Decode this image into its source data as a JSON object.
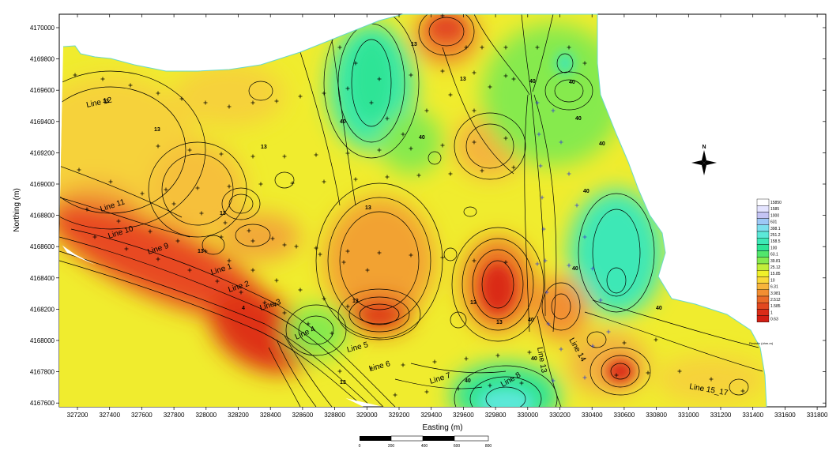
{
  "axes": {
    "xlabel": "Easting (m)",
    "ylabel": "Northing (m)",
    "xticks": [
      "327200",
      "327400",
      "327600",
      "327800",
      "328000",
      "328200",
      "328400",
      "328600",
      "328800",
      "329000",
      "329200",
      "329400",
      "329600",
      "329800",
      "330000",
      "330200",
      "330400",
      "330600",
      "330800",
      "331000",
      "331200",
      "331400",
      "331600",
      "331800"
    ],
    "yticks": [
      "4170000",
      "4169800",
      "4169600",
      "4169400",
      "4169200",
      "4169000",
      "4168800",
      "4168600",
      "4168400",
      "4168200",
      "4168000",
      "4167800",
      "4167600"
    ]
  },
  "legend": {
    "values": [
      "15850",
      "1585",
      "1000",
      "631",
      "398.1",
      "251.2",
      "158.5",
      "100",
      "63.1",
      "39.81",
      "25.12",
      "15.85",
      "10",
      "6.31",
      "3.981",
      "2.512",
      "1.585",
      "1",
      "0.63"
    ],
    "colors": [
      "#ffffff",
      "#e4e4ff",
      "#c4c4f4",
      "#9ec8f6",
      "#7ee0ee",
      "#5ce8d8",
      "#3ee8b6",
      "#2ee496",
      "#52e66c",
      "#86ea4e",
      "#c2ee3a",
      "#f0f02a",
      "#fad83a",
      "#f8b43c",
      "#f28e32",
      "#ea6a28",
      "#e24820",
      "#da2c18",
      "#d21e14"
    ],
    "caption": "Resistiv  (ohm-m)"
  },
  "lines": [
    {
      "label": "Line 12"
    },
    {
      "label": "Line 11"
    },
    {
      "label": "Line 10"
    },
    {
      "label": "Line 9"
    },
    {
      "label": "Line 1"
    },
    {
      "label": "Line 2"
    },
    {
      "label": "Line 3"
    },
    {
      "label": "Line 4"
    },
    {
      "label": "Line 5"
    },
    {
      "label": "Line 6"
    },
    {
      "label": "Line 7"
    },
    {
      "label": "Line 8"
    },
    {
      "label": "Line 13"
    },
    {
      "label": "Line 14"
    },
    {
      "label": "Line 15_17"
    }
  ],
  "contour_labels": [
    "13",
    "13",
    "13",
    "13",
    "13",
    "13",
    "13",
    "13",
    "13",
    "13",
    "13",
    "13",
    "40",
    "40",
    "40",
    "40",
    "40",
    "40",
    "40",
    "40",
    "40",
    "40",
    "40",
    "40",
    "4",
    "4"
  ],
  "north_arrow": {
    "label": "N",
    "icon": "north-arrow-icon"
  },
  "scale_bar": {
    "labels": [
      "0",
      "200",
      "400",
      "600",
      "800"
    ]
  }
}
